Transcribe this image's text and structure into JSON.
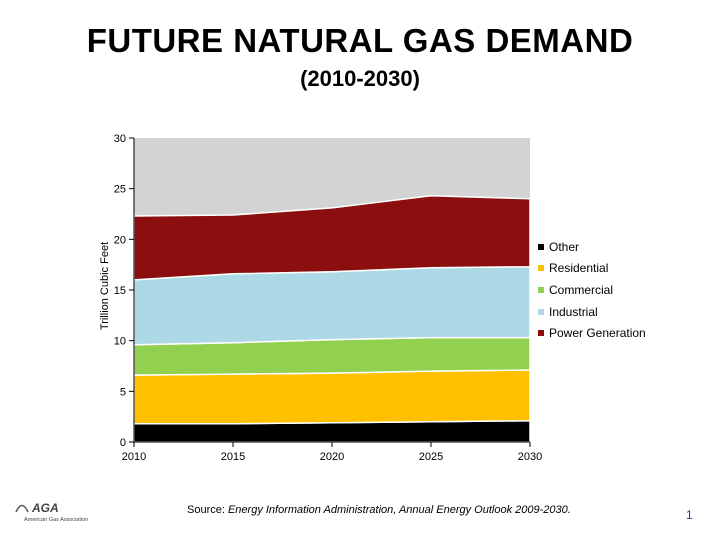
{
  "slide": {
    "title": "FUTURE NATURAL GAS DEMAND",
    "subtitle": "(2010-2030)",
    "source_prefix": "Source: ",
    "source_text": "Energy Information Administration, Annual Energy Outlook 2009-2030.",
    "page_number": "1",
    "logo_text": "AGA",
    "logo_subtext": "American Gas Association"
  },
  "chart_data": {
    "type": "area",
    "stacked": true,
    "title": "",
    "xlabel": "",
    "ylabel": "Trillion Cubic Feet",
    "xlim": [
      2010,
      2030
    ],
    "ylim": [
      0,
      30
    ],
    "x_ticks": [
      2010,
      2015,
      2020,
      2025,
      2030
    ],
    "y_ticks": [
      0,
      5,
      10,
      15,
      20,
      25,
      30
    ],
    "x": [
      2010,
      2015,
      2020,
      2025,
      2030
    ],
    "legend_position": "right",
    "plot_background": "#d3d3d3",
    "series": [
      {
        "name": "Other",
        "color": "#000000",
        "values": [
          1.8,
          1.8,
          1.9,
          2.0,
          2.1
        ]
      },
      {
        "name": "Residential",
        "color": "#ffc000",
        "values": [
          4.8,
          4.9,
          4.9,
          5.0,
          5.0
        ]
      },
      {
        "name": "Commercial",
        "color": "#92d050",
        "values": [
          3.0,
          3.1,
          3.3,
          3.3,
          3.2
        ]
      },
      {
        "name": "Industrial",
        "color": "#add8e6",
        "values": [
          6.4,
          6.8,
          6.7,
          6.9,
          7.0
        ]
      },
      {
        "name": "Power Generation",
        "color": "#8b0f0f",
        "values": [
          6.3,
          5.8,
          6.3,
          7.1,
          6.7
        ]
      }
    ],
    "legend_order": [
      "Other",
      "Residential",
      "Commercial",
      "Industrial",
      "Power Generation"
    ]
  }
}
